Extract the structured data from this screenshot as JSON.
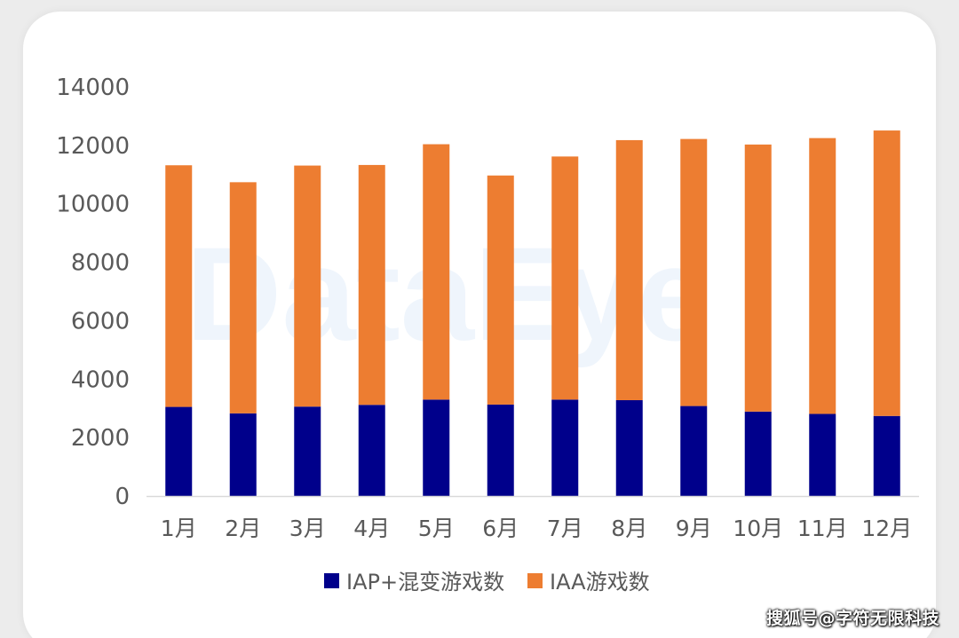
{
  "chart_data": {
    "type": "bar",
    "stacked": true,
    "categories": [
      "1月",
      "2月",
      "3月",
      "4月",
      "5月",
      "6月",
      "7月",
      "8月",
      "9月",
      "10月",
      "11月",
      "12月"
    ],
    "series": [
      {
        "name": "IAP+混变游戏数",
        "color": "#00008b",
        "values": [
          3050,
          2830,
          3060,
          3120,
          3300,
          3130,
          3300,
          3280,
          3080,
          2890,
          2810,
          2740
        ]
      },
      {
        "name": "IAA游戏数",
        "color": "#ed7d31",
        "values": [
          8270,
          7910,
          8250,
          8210,
          8740,
          7840,
          8320,
          8900,
          9140,
          9140,
          9440,
          9770
        ]
      }
    ],
    "ylim": [
      0,
      14000
    ],
    "yticks": [
      0,
      2000,
      4000,
      6000,
      8000,
      10000,
      12000,
      14000
    ],
    "grid": false,
    "legend_position": "bottom",
    "xlabel": "",
    "ylabel": ""
  },
  "watermarks": {
    "background_logo": "DataEye",
    "footer": "搜狐号@字符无限科技"
  }
}
